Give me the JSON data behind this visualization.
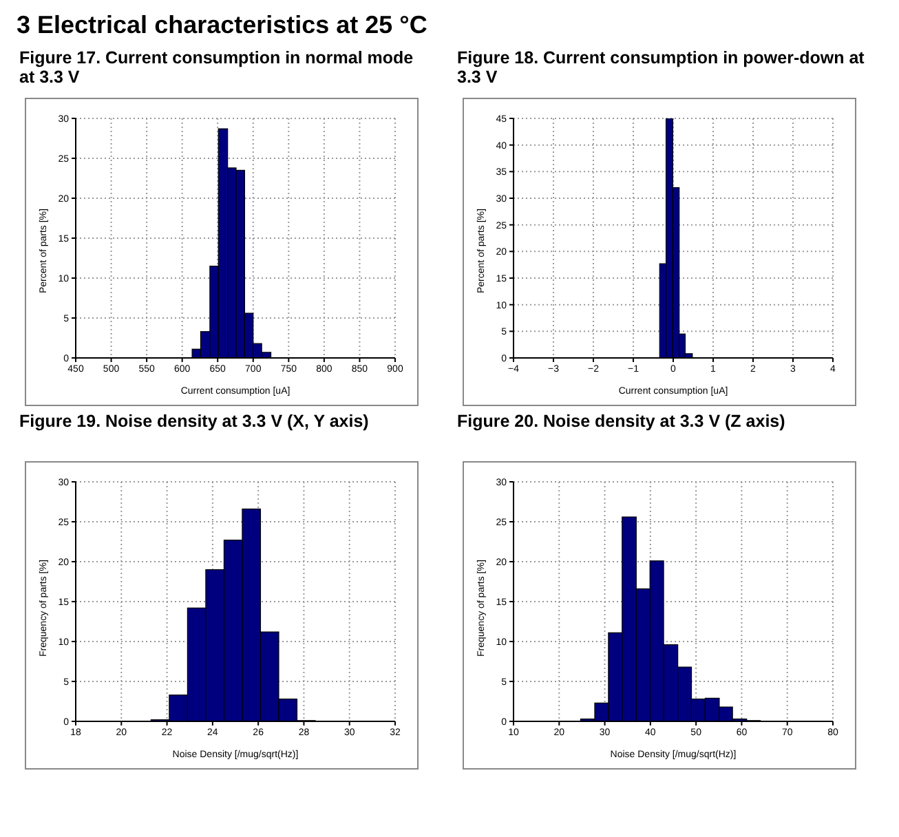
{
  "chart_data": [
    {
      "type": "histogram",
      "title": "Figure 17. Current consumption in normal mode at 3.3 V",
      "annotations": [
        "3 Electrical characteristics at 25 °C"
      ],
      "xlabel": "Current consumption [uA]",
      "ylabel": "Percent of parts [%]",
      "color": "#00007f",
      "grid": true,
      "bins": [
        614,
        626,
        639,
        651,
        664,
        676,
        688,
        700,
        712,
        725
      ],
      "values": [
        1.1,
        3.3,
        11.5,
        28.7,
        23.8,
        23.5,
        5.6,
        1.8,
        0.7
      ],
      "xlim": [
        450,
        900
      ],
      "xticks": [
        450,
        500,
        550,
        600,
        650,
        700,
        750,
        800,
        850,
        900
      ],
      "ylim": [
        0,
        30
      ],
      "yticks": [
        0,
        5,
        10,
        15,
        20,
        25,
        30
      ]
    },
    {
      "type": "histogram",
      "title": "Figure 18. Current consumption in power-down at 3.3 V",
      "xlabel": "Current consumption [uA]",
      "ylabel": "Percent of parts [%]",
      "color": "#00007f",
      "grid": true,
      "bins": [
        -0.34,
        -0.18,
        -0.01,
        0.15,
        0.3,
        0.48
      ],
      "values": [
        17.7,
        45,
        32,
        4.5,
        0.8
      ],
      "xlim": [
        -4,
        4
      ],
      "xticks": [
        {
          "value": -4,
          "label": "−4"
        },
        {
          "value": -3,
          "label": "−3"
        },
        {
          "value": -2,
          "label": "−2"
        },
        {
          "value": -1,
          "label": "−1"
        },
        0,
        1,
        2,
        3,
        4
      ],
      "ylim": [
        0,
        45
      ],
      "yticks": [
        0,
        5,
        10,
        15,
        20,
        25,
        30,
        35,
        40,
        45
      ]
    },
    {
      "type": "histogram",
      "title": "Figure 19. Noise density at 3.3 V (X, Y axis)",
      "xlabel": "Noise Density [/mug/sqrt(Hz)]",
      "ylabel": "Frequency of parts [%]",
      "color": "#00007f",
      "grid": true,
      "bins": [
        21.3,
        22.1,
        22.9,
        23.7,
        24.5,
        25.3,
        26.1,
        26.9,
        27.7,
        28.5
      ],
      "values": [
        0.2,
        3.3,
        14.2,
        19,
        22.7,
        26.6,
        11.2,
        2.8,
        0.1
      ],
      "xlim": [
        18,
        32
      ],
      "xticks": [
        18,
        20,
        22,
        24,
        26,
        28,
        30,
        32
      ],
      "ylim": [
        0,
        30
      ],
      "yticks": [
        0,
        5,
        10,
        15,
        20,
        25,
        30
      ]
    },
    {
      "type": "histogram",
      "title": "Figure 20. Noise density at 3.3 V (Z axis)",
      "xlabel": "Noise Density [/mug/sqrt(Hz)]",
      "ylabel": "Frequency of parts [%]",
      "color": "#00007f",
      "grid": true,
      "bins": [
        24.7,
        27.8,
        30.8,
        33.8,
        36.9,
        39.9,
        42.9,
        46.0,
        49.0,
        52.0,
        55.1,
        58.0,
        61.1,
        64.1
      ],
      "values": [
        0.3,
        2.3,
        11.1,
        25.6,
        16.6,
        20.1,
        9.6,
        6.8,
        2.8,
        2.9,
        1.8,
        0.3,
        0.1
      ],
      "xlim": [
        10,
        80
      ],
      "xticks": [
        10,
        20,
        30,
        40,
        50,
        60,
        70,
        80
      ],
      "ylim": [
        0,
        30
      ],
      "yticks": [
        0,
        5,
        10,
        15,
        20,
        25,
        30
      ]
    }
  ]
}
